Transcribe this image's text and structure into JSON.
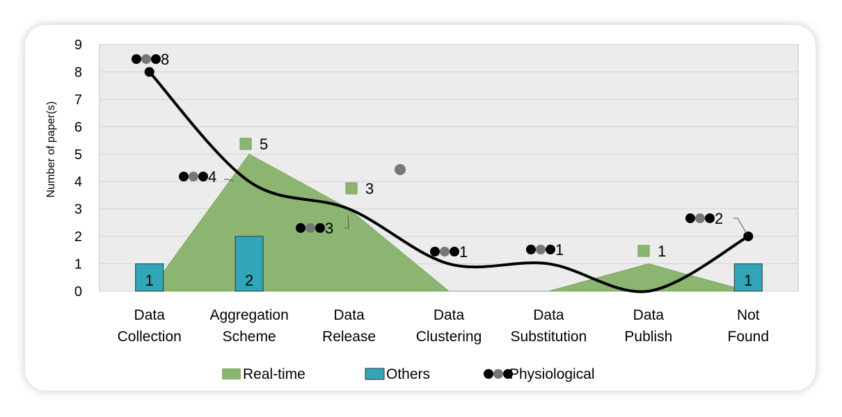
{
  "chart_data": {
    "type": "area",
    "title": "",
    "xlabel": "",
    "ylabel": "Number of paper(s)",
    "ylim": [
      0,
      9
    ],
    "yticks": [
      0,
      1,
      2,
      3,
      4,
      5,
      6,
      7,
      8,
      9
    ],
    "grid": true,
    "legend_position": "bottom",
    "categories": [
      [
        "Data",
        "Collection"
      ],
      [
        "Aggregation",
        "Scheme"
      ],
      [
        "Data",
        "Release"
      ],
      [
        "Data",
        "Clustering"
      ],
      [
        "Data",
        "Substitution"
      ],
      [
        "Data",
        "Publish"
      ],
      [
        "Not",
        "Found"
      ]
    ],
    "series": [
      {
        "name": "Real-time",
        "kind": "area",
        "color": "#8cb572",
        "values": [
          0,
          5,
          3,
          0,
          0,
          1,
          0
        ],
        "labels": [
          "",
          "5",
          "3",
          "",
          "",
          "1",
          ""
        ]
      },
      {
        "name": "Others",
        "kind": "bar",
        "color": "#31a6b8",
        "values": [
          1,
          2,
          0,
          0,
          0,
          0,
          1
        ],
        "labels": [
          "1",
          "2",
          "",
          "",
          "",
          "",
          "1"
        ]
      },
      {
        "name": "Physiological",
        "kind": "smooth-line",
        "color": "#000000",
        "values": [
          8,
          4,
          3,
          1,
          1,
          0,
          2
        ],
        "labels": [
          "8",
          "4",
          "3",
          "1",
          "1",
          "",
          "2"
        ]
      }
    ],
    "plot_background": "#ececec",
    "marker_colors": {
      "dark": "#000000",
      "gray": "#777777"
    }
  }
}
